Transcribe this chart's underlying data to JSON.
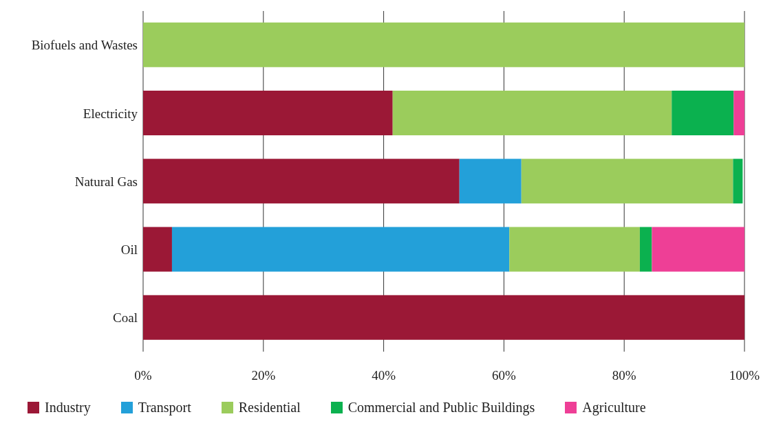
{
  "chart_data": {
    "type": "bar",
    "orientation": "horizontal",
    "stacked": true,
    "categories": [
      "Biofuels and Wastes",
      "Electricity",
      "Natural Gas",
      "Oil",
      "Coal"
    ],
    "series": [
      {
        "name": "Industry",
        "color": "#9b1836",
        "values": [
          0,
          41.5,
          52.6,
          4.8,
          100
        ]
      },
      {
        "name": "Transport",
        "color": "#23a0d9",
        "values": [
          0,
          0,
          10.3,
          56.1,
          0
        ]
      },
      {
        "name": "Residential",
        "color": "#9bcc5c",
        "values": [
          100,
          46.4,
          35.2,
          21.7,
          0
        ]
      },
      {
        "name": "Commercial and Public Buildings",
        "color": "#0bb14f",
        "values": [
          0,
          10.3,
          1.6,
          2.0,
          0
        ]
      },
      {
        "name": "Agriculture",
        "color": "#ee3f96",
        "values": [
          0,
          1.8,
          0,
          15.4,
          0
        ]
      }
    ],
    "xlim": [
      0,
      100
    ],
    "xticks": [
      {
        "value": 0,
        "label": "0%"
      },
      {
        "value": 20,
        "label": "20%"
      },
      {
        "value": 40,
        "label": "40%"
      },
      {
        "value": 60,
        "label": "60%"
      },
      {
        "value": 80,
        "label": "80%"
      },
      {
        "value": 100,
        "label": "100%"
      }
    ],
    "grid": "x",
    "legend": "bottom"
  }
}
